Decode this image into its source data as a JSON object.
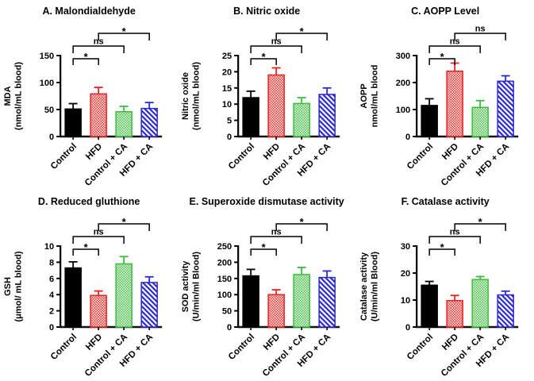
{
  "page": {
    "background": "#ffffff"
  },
  "categories": [
    "Control",
    "HFD",
    "Control + CA",
    "HFD + CA"
  ],
  "bar_styles": [
    {
      "name": "control",
      "style": "solid",
      "color": "#000000"
    },
    {
      "name": "hfd",
      "style": "checker",
      "color": "#e8221e"
    },
    {
      "name": "control-ca",
      "style": "checker",
      "color": "#3bbd3b"
    },
    {
      "name": "hfd-ca",
      "style": "diagonal",
      "color": "#2a28d0"
    }
  ],
  "chart_data": [
    {
      "type": "bar",
      "panel": "A",
      "title": "A. Malondialdehyde",
      "ylabel": [
        "MDA",
        "(nmol/mL blood)"
      ],
      "categories": [
        "Control",
        "HFD",
        "Control + CA",
        "HFD + CA"
      ],
      "values": [
        51,
        79,
        46,
        52
      ],
      "errors": [
        10,
        12,
        10,
        11
      ],
      "ylim": [
        0,
        150
      ],
      "yticks": [
        0,
        50,
        100,
        150
      ],
      "significance": [
        {
          "from": "Control",
          "to": "HFD",
          "label": "*"
        },
        {
          "from": "Control",
          "to": "Control + CA",
          "label": "ns"
        },
        {
          "from": "HFD",
          "to": "HFD + CA",
          "label": "*"
        }
      ]
    },
    {
      "type": "bar",
      "panel": "B",
      "title": "B. Nitric oxide",
      "ylabel": [
        "Nitric oxide",
        "(nmol/mL blood)"
      ],
      "categories": [
        "Control",
        "HFD",
        "Control + CA",
        "HFD + CA"
      ],
      "values": [
        12,
        19,
        10.2,
        13
      ],
      "errors": [
        2,
        2.2,
        1.8,
        2
      ],
      "ylim": [
        0,
        25
      ],
      "yticks": [
        0,
        5,
        10,
        15,
        20,
        25
      ],
      "significance": [
        {
          "from": "Control",
          "to": "HFD",
          "label": "*"
        },
        {
          "from": "Control",
          "to": "Control + CA",
          "label": "ns"
        },
        {
          "from": "HFD",
          "to": "HFD + CA",
          "label": "*"
        }
      ]
    },
    {
      "type": "bar",
      "panel": "C",
      "title": "C. AOPP Level",
      "ylabel": [
        "AOPP",
        "nmol/mL blood"
      ],
      "categories": [
        "Control",
        "HFD",
        "Control + CA",
        "HFD + CA"
      ],
      "values": [
        115,
        242,
        108,
        205
      ],
      "errors": [
        25,
        30,
        25,
        20
      ],
      "ylim": [
        0,
        300
      ],
      "yticks": [
        0,
        100,
        200,
        300
      ],
      "significance": [
        {
          "from": "Control",
          "to": "HFD",
          "label": "*"
        },
        {
          "from": "Control",
          "to": "Control + CA",
          "label": "ns"
        },
        {
          "from": "HFD",
          "to": "HFD + CA",
          "label": "ns"
        }
      ]
    },
    {
      "type": "bar",
      "panel": "D",
      "title": "D. Reduced gluthione",
      "ylabel": [
        "GSH",
        "(μmol/ mL blood)"
      ],
      "categories": [
        "Control",
        "HFD",
        "Control + CA",
        "HFD + CA"
      ],
      "values": [
        7.3,
        3.9,
        7.8,
        5.5
      ],
      "errors": [
        0.75,
        0.55,
        0.9,
        0.7
      ],
      "ylim": [
        0,
        10
      ],
      "yticks": [
        0,
        2,
        4,
        6,
        8,
        10
      ],
      "significance": [
        {
          "from": "Control",
          "to": "HFD",
          "label": "*"
        },
        {
          "from": "Control",
          "to": "Control + CA",
          "label": "ns"
        },
        {
          "from": "HFD",
          "to": "HFD + CA",
          "label": "*"
        }
      ]
    },
    {
      "type": "bar",
      "panel": "E",
      "title": "E. Superoxide dismutase activity",
      "ylabel": [
        "SOD activity",
        "(U/min/ml Blood)"
      ],
      "categories": [
        "Control",
        "HFD",
        "Control + CA",
        "HFD + CA"
      ],
      "values": [
        158,
        100,
        162,
        153
      ],
      "errors": [
        20,
        15,
        22,
        20
      ],
      "ylim": [
        0,
        250
      ],
      "yticks": [
        0,
        50,
        100,
        150,
        200,
        250
      ],
      "significance": [
        {
          "from": "Control",
          "to": "HFD",
          "label": "*"
        },
        {
          "from": "Control",
          "to": "Control + CA",
          "label": "ns"
        },
        {
          "from": "HFD",
          "to": "HFD + CA",
          "label": "*"
        }
      ]
    },
    {
      "type": "bar",
      "panel": "F",
      "title": "F. Catalase activity",
      "ylabel": [
        "Catalase activity",
        "(U/min/ml Blood)"
      ],
      "categories": [
        "Control",
        "HFD",
        "Control + CA",
        "HFD + CA"
      ],
      "values": [
        15.5,
        9.8,
        17.6,
        11.9
      ],
      "errors": [
        1.4,
        1.9,
        1.1,
        1.4
      ],
      "ylim": [
        0,
        30
      ],
      "yticks": [
        0,
        10,
        20,
        30
      ],
      "significance": [
        {
          "from": "Control",
          "to": "HFD",
          "label": "*"
        },
        {
          "from": "Control",
          "to": "Control + CA",
          "label": "ns"
        },
        {
          "from": "HFD",
          "to": "HFD + CA",
          "label": "*"
        }
      ]
    }
  ]
}
